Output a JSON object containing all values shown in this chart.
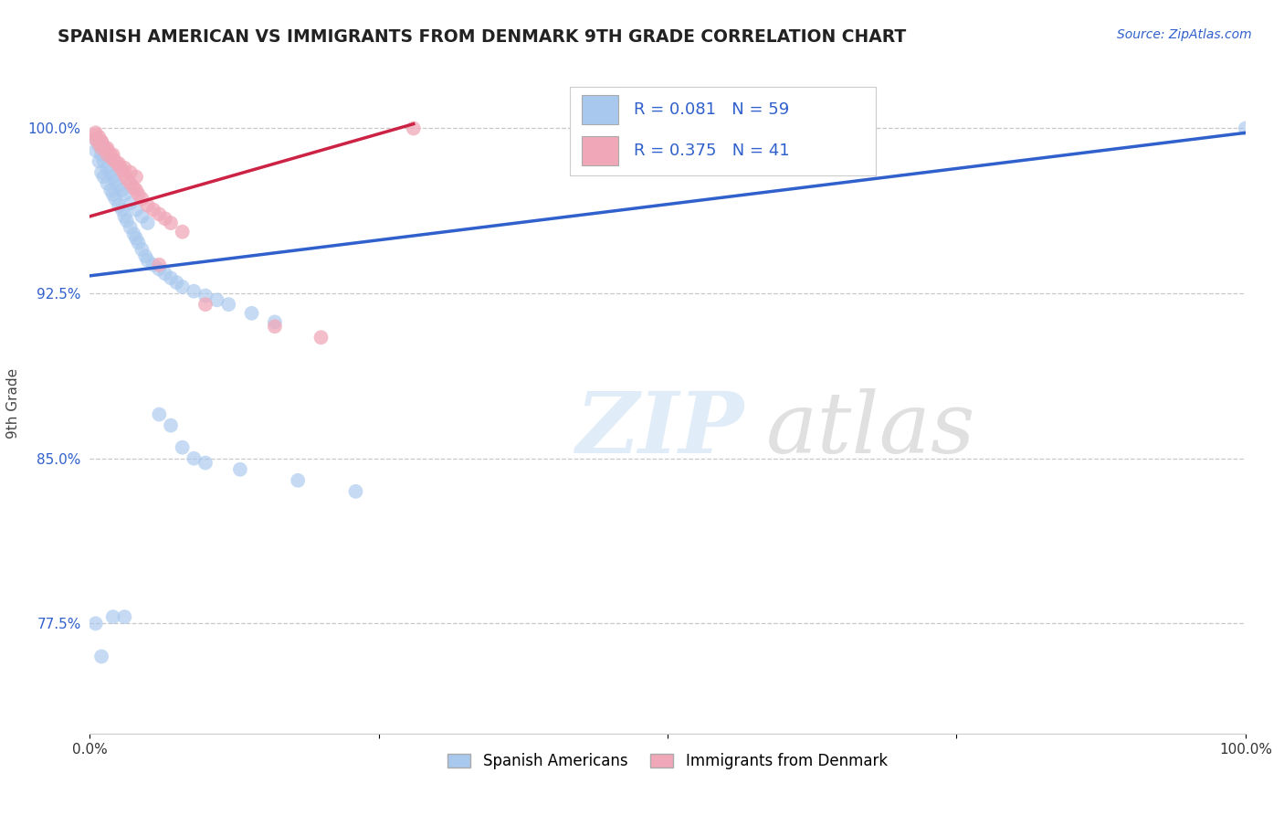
{
  "title": "SPANISH AMERICAN VS IMMIGRANTS FROM DENMARK 9TH GRADE CORRELATION CHART",
  "source": "Source: ZipAtlas.com",
  "ylabel": "9th Grade",
  "xlim": [
    0.0,
    1.0
  ],
  "ylim": [
    0.725,
    1.025
  ],
  "yticks": [
    0.775,
    0.85,
    0.925,
    1.0
  ],
  "ytick_labels": [
    "77.5%",
    "85.0%",
    "92.5%",
    "100.0%"
  ],
  "xticks": [
    0.0,
    0.25,
    0.5,
    0.75,
    1.0
  ],
  "xtick_labels": [
    "0.0%",
    "",
    "",
    "",
    "100.0%"
  ],
  "blue_R": 0.081,
  "blue_N": 59,
  "pink_R": 0.375,
  "pink_N": 41,
  "blue_color": "#A8C8EE",
  "pink_color": "#F0A8B8",
  "blue_line_color": "#3060CC",
  "pink_line_color": "#CC2244",
  "legend_label_blue": "Spanish Americans",
  "legend_label_pink": "Immigrants from Denmark",
  "blue_line_x0": 0.0,
  "blue_line_y0": 0.933,
  "blue_line_x1": 1.0,
  "blue_line_y1": 0.998,
  "pink_line_x0": 0.0,
  "pink_line_y0": 0.96,
  "pink_line_x1": 0.28,
  "pink_line_y1": 1.002,
  "blue_x": [
    0.005,
    0.008,
    0.01,
    0.012,
    0.015,
    0.018,
    0.02,
    0.022,
    0.025,
    0.028,
    0.03,
    0.032,
    0.035,
    0.038,
    0.04,
    0.042,
    0.045,
    0.048,
    0.05,
    0.055,
    0.06,
    0.065,
    0.07,
    0.075,
    0.08,
    0.09,
    0.1,
    0.11,
    0.12,
    0.14,
    0.16,
    0.005,
    0.008,
    0.01,
    0.012,
    0.015,
    0.018,
    0.02,
    0.022,
    0.025,
    0.028,
    0.03,
    0.035,
    0.04,
    0.045,
    0.05,
    0.06,
    0.07,
    0.08,
    0.09,
    0.1,
    0.13,
    0.18,
    0.23,
    0.005,
    0.01,
    0.02,
    0.03,
    1.0
  ],
  "blue_y": [
    0.99,
    0.985,
    0.98,
    0.978,
    0.975,
    0.972,
    0.97,
    0.968,
    0.965,
    0.963,
    0.96,
    0.958,
    0.955,
    0.952,
    0.95,
    0.948,
    0.945,
    0.942,
    0.94,
    0.938,
    0.936,
    0.934,
    0.932,
    0.93,
    0.928,
    0.926,
    0.924,
    0.922,
    0.92,
    0.916,
    0.912,
    0.995,
    0.992,
    0.988,
    0.985,
    0.982,
    0.98,
    0.978,
    0.976,
    0.974,
    0.972,
    0.97,
    0.966,
    0.963,
    0.96,
    0.957,
    0.87,
    0.865,
    0.855,
    0.85,
    0.848,
    0.845,
    0.84,
    0.835,
    0.775,
    0.76,
    0.778,
    0.778,
    1.0
  ],
  "pink_x": [
    0.005,
    0.008,
    0.01,
    0.012,
    0.015,
    0.018,
    0.02,
    0.022,
    0.025,
    0.028,
    0.03,
    0.032,
    0.035,
    0.038,
    0.04,
    0.042,
    0.045,
    0.05,
    0.055,
    0.06,
    0.065,
    0.07,
    0.08,
    0.005,
    0.008,
    0.01,
    0.015,
    0.02,
    0.025,
    0.03,
    0.035,
    0.04,
    0.06,
    0.1,
    0.16,
    0.2,
    0.005,
    0.01,
    0.015,
    0.02,
    0.28
  ],
  "pink_y": [
    0.998,
    0.996,
    0.994,
    0.992,
    0.99,
    0.988,
    0.986,
    0.985,
    0.983,
    0.981,
    0.979,
    0.977,
    0.975,
    0.973,
    0.972,
    0.97,
    0.968,
    0.965,
    0.963,
    0.961,
    0.959,
    0.957,
    0.953,
    0.995,
    0.993,
    0.991,
    0.988,
    0.986,
    0.984,
    0.982,
    0.98,
    0.978,
    0.938,
    0.92,
    0.91,
    0.905,
    0.997,
    0.994,
    0.991,
    0.988,
    1.0
  ]
}
